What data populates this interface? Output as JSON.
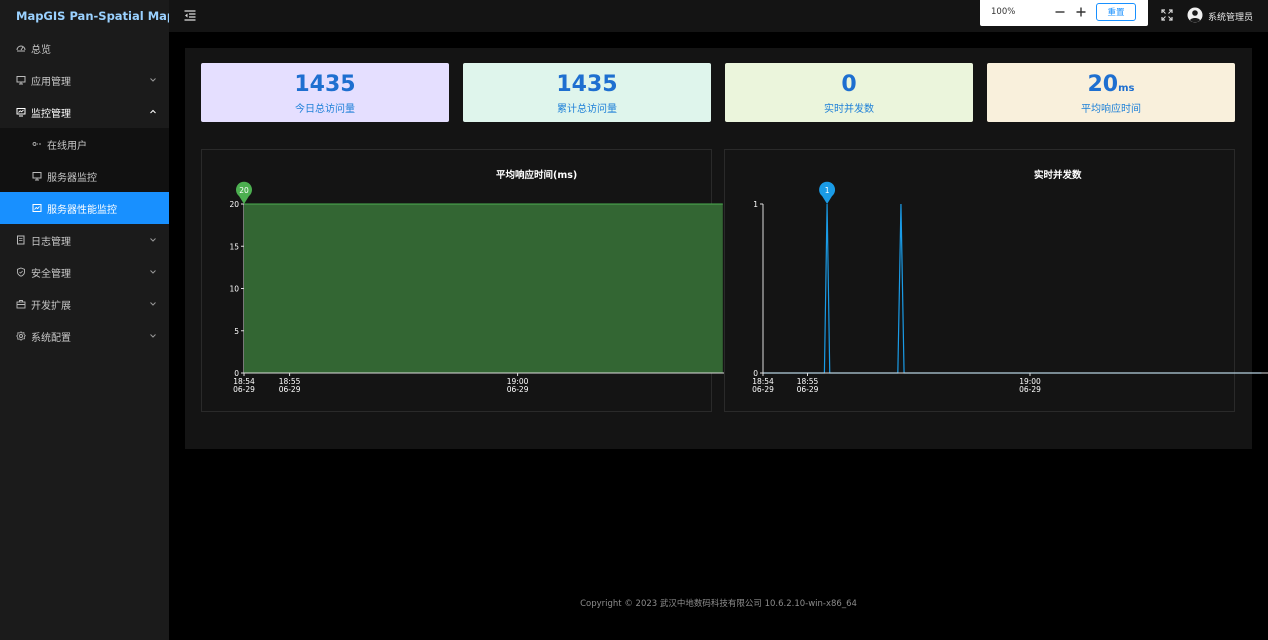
{
  "app": {
    "title": "MapGIS Pan-Spatial Map"
  },
  "sidebar": {
    "items": [
      {
        "label": "总览",
        "icon": "dashboard-icon"
      },
      {
        "label": "应用管理",
        "icon": "desktop-icon"
      },
      {
        "label": "监控管理",
        "icon": "monitor-icon",
        "expanded": true,
        "children": [
          {
            "label": "在线用户",
            "icon": "online-users-icon"
          },
          {
            "label": "服务器监控",
            "icon": "server-icon"
          },
          {
            "label": "服务器性能监控",
            "icon": "performance-icon",
            "active": true
          }
        ]
      },
      {
        "label": "日志管理",
        "icon": "log-icon"
      },
      {
        "label": "安全管理",
        "icon": "shield-icon"
      },
      {
        "label": "开发扩展",
        "icon": "extension-icon"
      },
      {
        "label": "系统配置",
        "icon": "gear-icon"
      }
    ]
  },
  "topbar": {
    "zoom": "100%",
    "reset_label": "重置",
    "user": "系统管理员"
  },
  "stats": [
    {
      "value": "1435",
      "unit": "",
      "label": "今日总访问量",
      "bg": "#e5dfff"
    },
    {
      "value": "1435",
      "unit": "",
      "label": "累计总访问量",
      "bg": "#dff5ec"
    },
    {
      "value": "0",
      "unit": "",
      "label": "实时并发数",
      "bg": "#ebf5dc"
    },
    {
      "value": "20",
      "unit": "ms",
      "label": "平均响应时间",
      "bg": "#f9f0dc"
    }
  ],
  "chart_data": [
    {
      "type": "area",
      "title": "平均响应时间(ms)",
      "color": "#4caf50",
      "fill": "#336633",
      "ylim": [
        0,
        20
      ],
      "yticks": [
        0,
        5,
        10,
        15,
        20
      ],
      "xticks": [
        {
          "time": "18:54",
          "date": "06-29",
          "minute": 0
        },
        {
          "time": "18:55",
          "date": "06-29",
          "minute": 1
        },
        {
          "time": "19:00",
          "date": "06-29",
          "minute": 6
        }
      ],
      "series": [
        {
          "values": [
            {
              "minute": 0,
              "y": 20
            },
            {
              "minute": 10.5,
              "y": 20
            }
          ]
        }
      ],
      "markpoint": {
        "label": "20",
        "minute": 0,
        "y": 20
      }
    },
    {
      "type": "line",
      "title": "实时并发数",
      "color": "#1a9be6",
      "ylim": [
        0,
        1
      ],
      "yticks": [
        0,
        1
      ],
      "xticks": [
        {
          "time": "18:54",
          "date": "06-29",
          "minute": 0
        },
        {
          "time": "18:55",
          "date": "06-29",
          "minute": 1
        },
        {
          "time": "19:00",
          "date": "06-29",
          "minute": 6
        }
      ],
      "series": [
        {
          "values": [
            {
              "minute": 0,
              "y": 0
            },
            {
              "minute": 1.38,
              "y": 0
            },
            {
              "minute": 1.44,
              "y": 1
            },
            {
              "minute": 1.5,
              "y": 0
            },
            {
              "minute": 3.03,
              "y": 0
            },
            {
              "minute": 3.1,
              "y": 1
            },
            {
              "minute": 3.17,
              "y": 0
            },
            {
              "minute": 11.2,
              "y": 0
            }
          ]
        }
      ],
      "markpoint": {
        "label": "1",
        "minute": 1.44,
        "y": 1
      }
    }
  ],
  "footer": {
    "copyright": "Copyright © 2023 武汉中地数码科技有限公司 10.6.2.10-win-x86_64"
  }
}
